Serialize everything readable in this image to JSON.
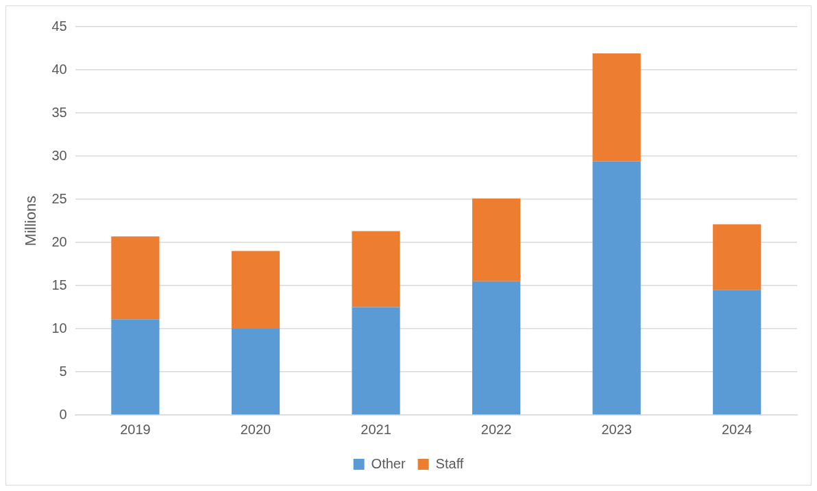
{
  "chart_data": {
    "type": "bar",
    "stacked": true,
    "ylabel": "Millions",
    "categories": [
      "2019",
      "2020",
      "2021",
      "2022",
      "2023",
      "2024"
    ],
    "series": [
      {
        "name": "Other",
        "color": "#5b9bd5",
        "values": [
          11.1,
          10.0,
          12.5,
          15.5,
          29.4,
          14.5
        ]
      },
      {
        "name": "Staff",
        "color": "#ed7d31",
        "values": [
          9.6,
          9.0,
          8.8,
          9.6,
          12.5,
          7.6
        ]
      }
    ],
    "ylim": [
      0,
      45
    ],
    "yticks": [
      0,
      5,
      10,
      15,
      20,
      25,
      30,
      35,
      40,
      45
    ],
    "grid": "y",
    "legend": "bottom"
  }
}
